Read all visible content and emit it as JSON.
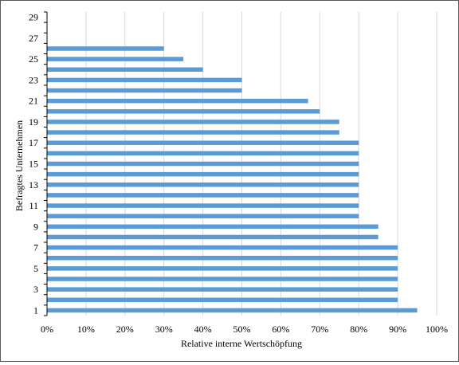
{
  "chart_data": {
    "type": "bar",
    "orientation": "horizontal",
    "title": "",
    "xlabel": "Relative interne Wertschöpfung",
    "ylabel": "Befragtes Unternehmen",
    "xlim": [
      0,
      100
    ],
    "x_ticks": [
      0,
      10,
      20,
      30,
      40,
      50,
      60,
      70,
      80,
      90,
      100
    ],
    "x_tick_suffix": "%",
    "y_tick_labels": [
      1,
      3,
      5,
      7,
      9,
      11,
      13,
      15,
      17,
      19,
      21,
      23,
      25,
      27,
      29
    ],
    "grid": "vertical",
    "legend": "none",
    "bar_color": "#5B9BD5",
    "categories": [
      1,
      2,
      3,
      4,
      5,
      6,
      7,
      8,
      9,
      10,
      11,
      12,
      13,
      14,
      15,
      16,
      17,
      18,
      19,
      20,
      21,
      22,
      23,
      24,
      25,
      26,
      27,
      28,
      29
    ],
    "values": [
      95,
      90,
      90,
      90,
      90,
      90,
      90,
      85,
      85,
      80,
      80,
      80,
      80,
      80,
      80,
      80,
      80,
      75,
      75,
      70,
      67,
      50,
      50,
      40,
      35,
      30,
      null,
      null,
      null
    ]
  }
}
